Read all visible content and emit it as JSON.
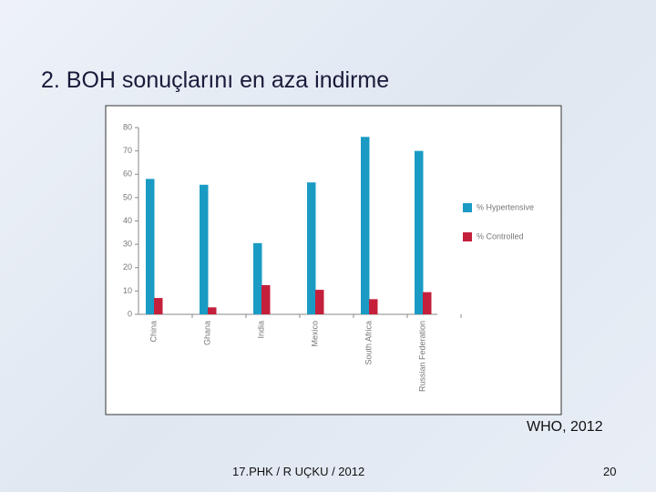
{
  "slide": {
    "title": "2. BOH sonuçlarını en aza indirme",
    "source": "WHO, 2012",
    "footer": "17.PHK / R UÇKU / 2012",
    "page": "20"
  },
  "chart_data": {
    "type": "bar",
    "categories": [
      "China",
      "Ghana",
      "India",
      "Mexico",
      "South Africa",
      "Russian Federation"
    ],
    "series": [
      {
        "name": "% Hypertensive",
        "color": "#1a9bc4",
        "values": [
          58,
          55.5,
          30.5,
          56.5,
          76,
          70
        ]
      },
      {
        "name": "% Controlled",
        "color": "#c4203c",
        "values": [
          7,
          3,
          12.5,
          10.5,
          6.5,
          9.5
        ]
      }
    ],
    "ylim": [
      0,
      80
    ],
    "yticks": [
      0,
      10,
      20,
      30,
      40,
      50,
      60,
      70,
      80
    ],
    "grid": false,
    "legend": "right"
  }
}
